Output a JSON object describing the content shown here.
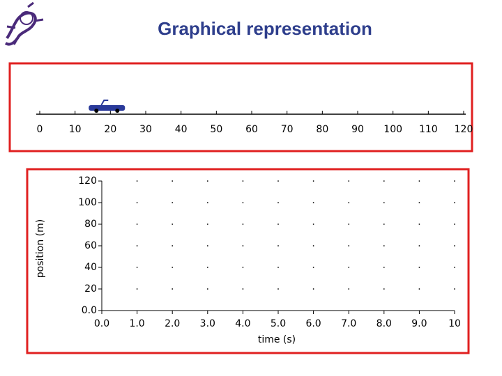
{
  "title": "Graphical representation",
  "chart_data": [
    {
      "type": "number-line",
      "values": [
        19
      ],
      "color": "#2a3a9a",
      "xlim": [
        0,
        120
      ],
      "xticks": [
        0,
        10,
        20,
        30,
        40,
        50,
        60,
        70,
        80,
        90,
        100,
        110,
        120
      ]
    },
    {
      "type": "scatter",
      "xlabel": "time (s)",
      "ylabel": "position (m)",
      "xlim": [
        0,
        10
      ],
      "ylim": [
        0,
        120
      ],
      "xticks": [
        {
          "value": 0,
          "label": "0.0"
        },
        {
          "value": 1,
          "label": "1.0"
        },
        {
          "value": 2,
          "label": "2.0"
        },
        {
          "value": 3,
          "label": "3.0"
        },
        {
          "value": 4,
          "label": "4.0"
        },
        {
          "value": 5,
          "label": "5.0"
        },
        {
          "value": 6,
          "label": "6.0"
        },
        {
          "value": 7,
          "label": "7.0"
        },
        {
          "value": 8,
          "label": "8.0"
        },
        {
          "value": 9,
          "label": "9.0"
        },
        10
      ],
      "yticks": [
        {
          "value": 0,
          "label": "0.0"
        },
        20,
        40,
        60,
        80,
        100,
        120
      ],
      "grid": "dots"
    }
  ]
}
